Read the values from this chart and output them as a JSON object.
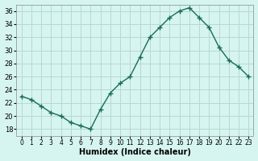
{
  "x": [
    0,
    1,
    2,
    3,
    4,
    5,
    6,
    7,
    8,
    9,
    10,
    11,
    12,
    13,
    14,
    15,
    16,
    17,
    18,
    19,
    20,
    21,
    22,
    23
  ],
  "y": [
    23,
    22.5,
    21.5,
    20.5,
    20,
    19,
    18.5,
    18,
    21,
    23.5,
    25,
    26,
    29,
    32,
    33.5,
    35,
    36,
    36.5,
    35,
    33.5,
    30.5,
    28.5,
    27.5,
    26
  ],
  "line_color": "#1a6b5a",
  "marker": "+",
  "bg_color": "#d6f5f0",
  "grid_color": "#b8d8d4",
  "xlabel": "Humidex (Indice chaleur)",
  "ylabel": "",
  "title": "",
  "xlim": [
    -0.5,
    23.5
  ],
  "ylim": [
    17,
    37
  ],
  "yticks": [
    18,
    20,
    22,
    24,
    26,
    28,
    30,
    32,
    34,
    36
  ],
  "xtick_labels": [
    "0",
    "1",
    "2",
    "3",
    "4",
    "5",
    "6",
    "7",
    "8",
    "9",
    "10",
    "11",
    "12",
    "13",
    "14",
    "15",
    "16",
    "17",
    "18",
    "19",
    "20",
    "21",
    "22",
    "23"
  ]
}
